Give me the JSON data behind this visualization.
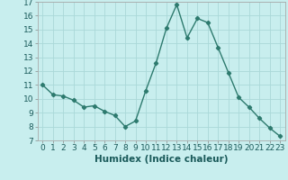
{
  "x": [
    0,
    1,
    2,
    3,
    4,
    5,
    6,
    7,
    8,
    9,
    10,
    11,
    12,
    13,
    14,
    15,
    16,
    17,
    18,
    19,
    20,
    21,
    22,
    23
  ],
  "y": [
    11.0,
    10.3,
    10.2,
    9.9,
    9.4,
    9.5,
    9.1,
    8.8,
    8.0,
    8.4,
    10.6,
    12.6,
    15.1,
    16.8,
    14.4,
    15.8,
    15.5,
    13.7,
    11.9,
    10.1,
    9.4,
    8.6,
    7.9,
    7.3
  ],
  "xlim": [
    -0.5,
    23.5
  ],
  "ylim": [
    7,
    17
  ],
  "yticks": [
    7,
    8,
    9,
    10,
    11,
    12,
    13,
    14,
    15,
    16,
    17
  ],
  "xticks": [
    0,
    1,
    2,
    3,
    4,
    5,
    6,
    7,
    8,
    9,
    10,
    11,
    12,
    13,
    14,
    15,
    16,
    17,
    18,
    19,
    20,
    21,
    22,
    23
  ],
  "xlabel": "Humidex (Indice chaleur)",
  "line_color": "#2d7a6e",
  "marker": "D",
  "marker_size": 2.2,
  "bg_color": "#c8eeee",
  "grid_color": "#aad8d8",
  "tick_label_fontsize": 6.5,
  "xlabel_fontsize": 7.5,
  "line_width": 1.0
}
